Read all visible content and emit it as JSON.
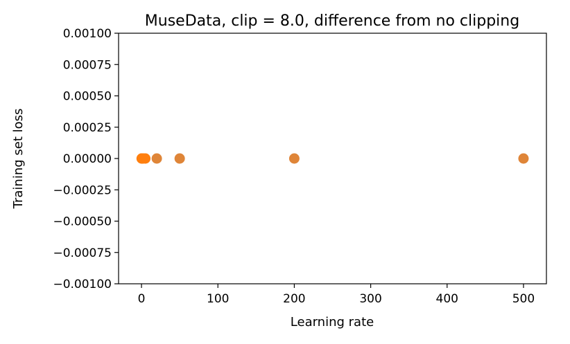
{
  "chart_data": {
    "type": "scatter",
    "title": "MuseData, clip = 8.0, difference from no clipping",
    "xlabel": "Learning rate",
    "ylabel": "Training set loss",
    "xlim": [
      -30,
      530
    ],
    "ylim": [
      -0.001,
      0.001
    ],
    "x_ticks": [
      0,
      100,
      200,
      300,
      400,
      500
    ],
    "x_tick_labels": [
      "0",
      "100",
      "200",
      "300",
      "400",
      "500"
    ],
    "y_ticks": [
      -0.001,
      -0.00075,
      -0.0005,
      -0.00025,
      0,
      0.00025,
      0.0005,
      0.00075,
      0.001
    ],
    "y_tick_labels": [
      "−0.00100",
      "−0.00075",
      "−0.00050",
      "−0.00025",
      "0.00000",
      "0.00025",
      "0.00050",
      "0.00075",
      "0.00100"
    ],
    "grid": false,
    "series": [
      {
        "color": "#ff7f0e",
        "x": [
          0.2,
          0.5,
          1,
          2,
          5
        ],
        "y": [
          0,
          0,
          0,
          0,
          0
        ]
      },
      {
        "color": "#df8538",
        "x": [
          20,
          50,
          200,
          500
        ],
        "y": [
          0,
          0,
          0,
          0
        ]
      }
    ]
  }
}
